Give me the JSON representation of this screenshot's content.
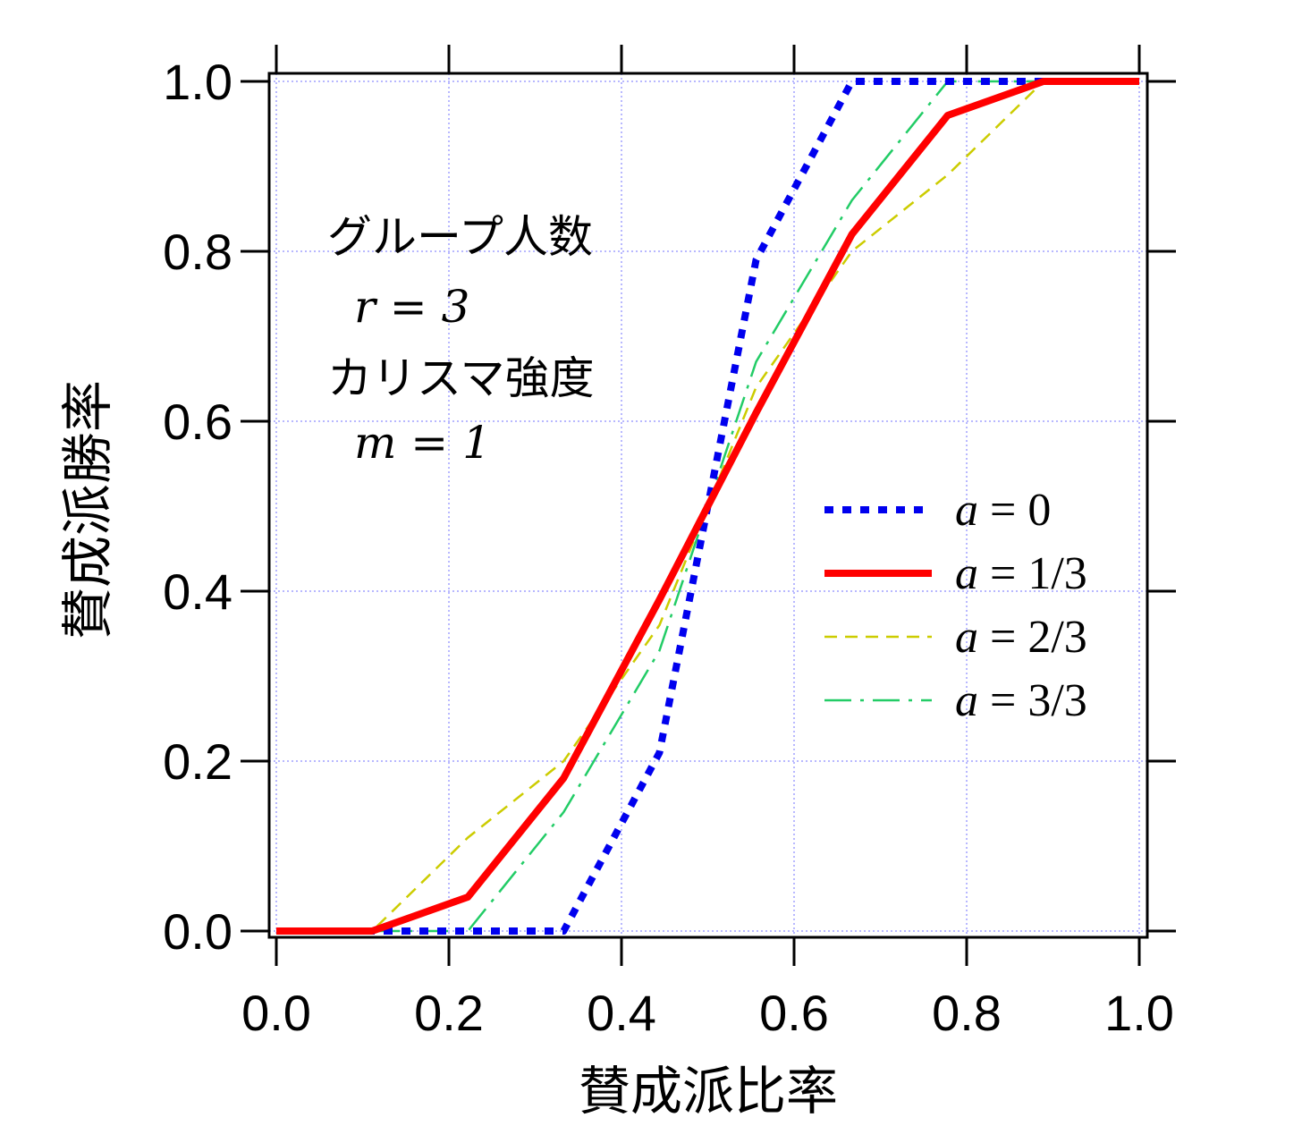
{
  "chart_data": {
    "type": "line",
    "title": "",
    "xlabel": "賛成派比率",
    "ylabel": "賛成派勝率",
    "xlim": [
      0.0,
      1.0
    ],
    "ylim": [
      0.0,
      1.0
    ],
    "xticks": [
      "0.0",
      "0.2",
      "0.4",
      "0.6",
      "0.8",
      "1.0"
    ],
    "yticks": [
      "0.0",
      "0.2",
      "0.4",
      "0.6",
      "0.8",
      "1.0"
    ],
    "grid": true,
    "legend_position": "right",
    "annotations": [
      "グループ人数",
      "r = 3",
      "カリスマ強度",
      "m = 1"
    ],
    "x": [
      0.0,
      0.111,
      0.222,
      0.333,
      0.444,
      0.5,
      0.556,
      0.667,
      0.778,
      0.889,
      1.0
    ],
    "series": [
      {
        "name": "a = 0",
        "color": "#0000ee",
        "style": "dotted",
        "values": [
          0.0,
          0.0,
          0.0,
          0.0,
          0.21,
          0.5,
          0.79,
          1.0,
          1.0,
          1.0,
          1.0
        ]
      },
      {
        "name": "a = 1/3",
        "color": "#ff0000",
        "style": "solid",
        "values": [
          0.0,
          0.0,
          0.04,
          0.18,
          0.39,
          0.5,
          0.61,
          0.82,
          0.96,
          1.0,
          1.0
        ]
      },
      {
        "name": "a = 2/3",
        "color": "#cccc00",
        "style": "dashed",
        "values": [
          0.0,
          0.0,
          0.11,
          0.2,
          0.36,
          0.5,
          0.64,
          0.8,
          0.89,
          1.0,
          1.0
        ]
      },
      {
        "name": "a = 3/3",
        "color": "#22cc66",
        "style": "dashdot",
        "values": [
          0.0,
          0.0,
          0.0,
          0.14,
          0.33,
          0.5,
          0.67,
          0.86,
          1.0,
          1.0,
          1.0
        ]
      }
    ]
  }
}
